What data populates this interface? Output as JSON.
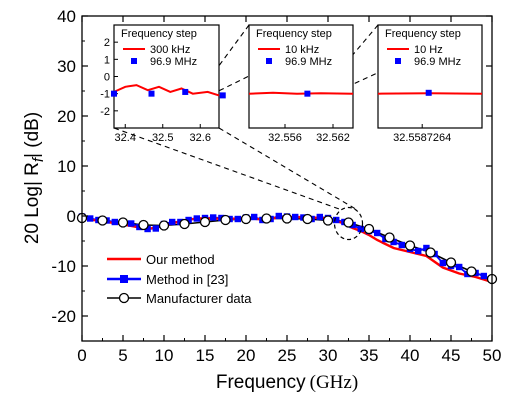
{
  "chart_data": {
    "type": "line",
    "xlabel": "Frequency",
    "xlabel_unit": "(GHz)",
    "ylabel": "20 Log| R",
    "ylabel_sub": "f",
    "ylabel_unit": "| (dB)",
    "xlim": [
      0,
      50
    ],
    "ylim": [
      -25,
      40
    ],
    "x_ticks": [
      "0",
      "5",
      "10",
      "15",
      "20",
      "25",
      "30",
      "35",
      "40",
      "45",
      "50"
    ],
    "y_ticks": [
      "40",
      "30",
      "20",
      "10",
      "0",
      "-10",
      "-20"
    ],
    "legend_position": "bottom-left",
    "legend": [
      {
        "label": "Our method",
        "color": "#ff0000",
        "marker": "none"
      },
      {
        "label": "Method in [23]",
        "color": "#0000ff",
        "marker": "square"
      },
      {
        "label": "Manufacturer data",
        "color": "#000000",
        "marker": "open-circle"
      }
    ],
    "series": [
      {
        "name": "Our method",
        "color": "#ff0000",
        "x": [
          0,
          2,
          4,
          6,
          8,
          10,
          12,
          14,
          16,
          18,
          20,
          22,
          24,
          26,
          28,
          30,
          31,
          32,
          33,
          34,
          35,
          36,
          38,
          40,
          42,
          44,
          46,
          48,
          50
        ],
        "y": [
          -0.3,
          -1.0,
          -1.4,
          -2.0,
          -2.6,
          -2.0,
          -1.0,
          -0.5,
          -0.5,
          -0.6,
          -0.4,
          -0.7,
          -0.3,
          -0.2,
          -0.3,
          -0.5,
          -1.0,
          -1.5,
          -2.4,
          -3.0,
          -3.8,
          -4.8,
          -6.4,
          -7.2,
          -8.0,
          -10.3,
          -11.5,
          -12.2,
          -13.2
        ]
      },
      {
        "name": "Method in [23]",
        "color": "#0000ff",
        "x": [
          0,
          1,
          2,
          3,
          4,
          5,
          6,
          7,
          8,
          9,
          10,
          11,
          12,
          13,
          14,
          15,
          16,
          17,
          18,
          19,
          20,
          21,
          22,
          23,
          24,
          25,
          26,
          27,
          28,
          29,
          30,
          31,
          32,
          33,
          34,
          35,
          36,
          37,
          38,
          39,
          40,
          41,
          42,
          43,
          44,
          45,
          46,
          47,
          48,
          49,
          50
        ],
        "y": [
          -0.1,
          -0.5,
          -0.8,
          -0.9,
          -1.2,
          -1.3,
          -1.5,
          -2.2,
          -2.6,
          -2.5,
          -1.6,
          -1.2,
          -1.2,
          -0.8,
          -0.5,
          -0.4,
          -0.3,
          -0.4,
          -0.6,
          -0.6,
          -0.3,
          -0.2,
          -0.8,
          -0.6,
          0.0,
          -0.1,
          -0.2,
          -0.3,
          -0.6,
          -0.2,
          -0.4,
          -0.8,
          -1.2,
          -1.8,
          -2.6,
          -3.0,
          -3.4,
          -4.6,
          -5.2,
          -5.8,
          -6.6,
          -7.0,
          -6.4,
          -7.6,
          -9.4,
          -10.0,
          -10.2,
          -11.6,
          -11.4,
          -12.0,
          -12.6
        ]
      },
      {
        "name": "Manufacturer data",
        "color": "#000000",
        "x": [
          0,
          2.5,
          5,
          7.5,
          10,
          12.5,
          15,
          17.5,
          20,
          22.5,
          25,
          27.5,
          30,
          32.5,
          35,
          37.5,
          40,
          42.5,
          45,
          47.5,
          50
        ],
        "y": [
          -0.4,
          -0.9,
          -1.3,
          -1.8,
          -1.9,
          -1.6,
          -1.2,
          -0.8,
          -0.6,
          -0.5,
          -0.5,
          -0.6,
          -0.9,
          -1.3,
          -2.6,
          -4.3,
          -5.9,
          -7.3,
          -9.3,
          -11.1,
          -12.6
        ]
      }
    ],
    "annotation": {
      "shape": "dashed-ellipse",
      "x": 32.5,
      "y": -1.5
    },
    "insets": [
      {
        "title": "Frequency step",
        "step_red": "300 kHz",
        "step_blue": "96.9 MHz",
        "x_ticks": [
          "32.4",
          "32.5",
          "32.6"
        ],
        "y_ticks": [
          "2",
          "1",
          "0",
          "-1",
          "-2"
        ],
        "xlim": [
          32.37,
          32.65
        ],
        "ylim": [
          -3,
          3
        ],
        "red_x": [
          32.37,
          32.4,
          32.43,
          32.46,
          32.49,
          32.52,
          32.55,
          32.58,
          32.62,
          32.65
        ],
        "red_y": [
          -0.9,
          -0.6,
          -0.5,
          -0.8,
          -0.6,
          -0.9,
          -0.7,
          -1.0,
          -0.9,
          -1.1
        ],
        "blue_x": [
          32.37,
          32.47,
          32.56,
          32.66
        ],
        "blue_y": [
          -1.0,
          -1.0,
          -0.9,
          -1.1
        ]
      },
      {
        "title": "Frequency step",
        "step_red": "10 kHz",
        "step_blue": "96.9 MHz",
        "x_ticks": [
          "32.556",
          "32.562"
        ],
        "xlim": [
          32.5515,
          32.5645
        ],
        "ylim": [
          -3,
          3
        ],
        "red_x": [
          32.5515,
          32.5545,
          32.5575,
          32.5605,
          32.5645
        ],
        "red_y": [
          -1.0,
          -0.95,
          -1.0,
          -0.98,
          -1.0
        ],
        "blue_x": [
          32.5588
        ],
        "blue_y": [
          -1.0
        ]
      },
      {
        "title": "Frequency step",
        "step_red": "10 Hz",
        "step_blue": "96.9 MHz",
        "x_ticks": [
          "32.5587264"
        ],
        "xlim": [
          32.558723,
          32.558731
        ],
        "ylim": [
          -3,
          3
        ],
        "red_x": [
          32.558723,
          32.558727,
          32.558731
        ],
        "red_y": [
          -1.0,
          -0.98,
          -1.0
        ],
        "blue_x": [
          32.5587269
        ],
        "blue_y": [
          -0.95
        ]
      }
    ]
  }
}
